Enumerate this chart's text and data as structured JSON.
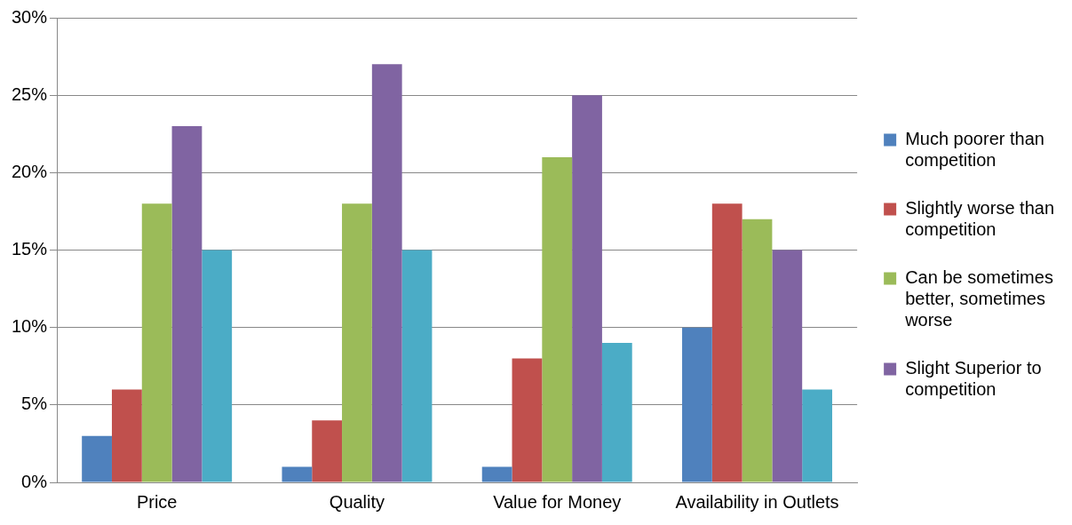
{
  "chart_data": {
    "type": "bar",
    "categories": [
      "Price",
      "Quality",
      "Value for Money",
      "Availability in Outlets"
    ],
    "series": [
      {
        "name": "Much poorer than competition",
        "color": "#4f81bd",
        "values": [
          3,
          1,
          1,
          10
        ]
      },
      {
        "name": "Slightly worse than competition",
        "color": "#c0504d",
        "values": [
          6,
          4,
          8,
          18
        ]
      },
      {
        "name": "Can be sometimes better, sometimes worse",
        "color": "#9bbb59",
        "values": [
          18,
          18,
          21,
          17
        ]
      },
      {
        "name": "Slight Superior to competition",
        "color": "#8064a2",
        "values": [
          23,
          27,
          25,
          15
        ]
      },
      {
        "color": "#4bacc6",
        "values": [
          15,
          15,
          9,
          6
        ]
      }
    ],
    "ylim": [
      0,
      30
    ],
    "yticks": [
      {
        "value": 0,
        "label": "0%"
      },
      {
        "value": 5,
        "label": "5%"
      },
      {
        "value": 10,
        "label": "10%"
      },
      {
        "value": 15,
        "label": "15%"
      },
      {
        "value": 20,
        "label": "20%"
      },
      {
        "value": 25,
        "label": "25%"
      },
      {
        "value": 30,
        "label": "30%"
      }
    ],
    "grid": "y",
    "legend": "right"
  }
}
